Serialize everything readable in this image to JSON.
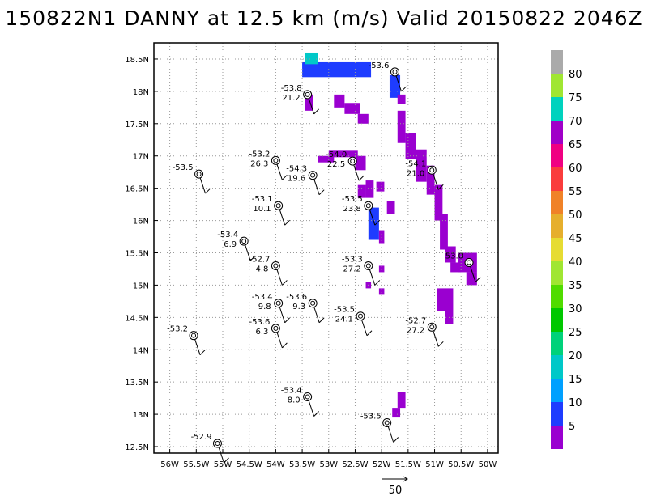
{
  "title": "150822N1 DANNY at 12.5 km (m/s) Valid 20150822 2046Z",
  "chart_data": {
    "type": "scatter",
    "title": "150822N1 DANNY at 12.5 km (m/s) Valid 20150822 2046Z",
    "xlabel": "",
    "ylabel": "",
    "xlim": [
      -56.3,
      -49.8
    ],
    "ylim": [
      12.4,
      18.75
    ],
    "grid": true,
    "x_ticks": [
      "56W",
      "55.5W",
      "55W",
      "54.5W",
      "54W",
      "53.5W",
      "53W",
      "52.5W",
      "52W",
      "51.5W",
      "51W",
      "50.5W",
      "50W"
    ],
    "y_ticks": [
      "12.5N",
      "13N",
      "13.5N",
      "14N",
      "14.5N",
      "15N",
      "15.5N",
      "16N",
      "16.5N",
      "17N",
      "17.5N",
      "18N",
      "18.5N"
    ],
    "colorbar": {
      "labels": [
        "5",
        "10",
        "15",
        "20",
        "25",
        "30",
        "35",
        "40",
        "45",
        "50",
        "55",
        "60",
        "65",
        "70",
        "75",
        "80"
      ],
      "colors": [
        "#9a00d0",
        "#1e3cff",
        "#00a0ff",
        "#00c8c8",
        "#00d27a",
        "#00c800",
        "#50dc00",
        "#a0e632",
        "#e6dc32",
        "#e6af2d",
        "#f08228",
        "#fa3c3c",
        "#f00082",
        "#a000c8",
        "#00d2be",
        "#a0e632",
        "#aaaaaa"
      ]
    },
    "reference_vector": {
      "label": "50"
    },
    "stations": [
      {
        "lon": -55.1,
        "lat": 12.55,
        "label1": "-52.9",
        "label2": ""
      },
      {
        "lon": -51.9,
        "lat": 12.87,
        "label1": "-53.5",
        "label2": ""
      },
      {
        "lon": -53.4,
        "lat": 13.27,
        "label1": "-53.4",
        "label2": "8.0"
      },
      {
        "lon": -55.55,
        "lat": 14.22,
        "label1": "-53.2",
        "label2": ""
      },
      {
        "lon": -54.0,
        "lat": 14.33,
        "label1": "-53.6",
        "label2": "6.3"
      },
      {
        "lon": -53.95,
        "lat": 14.72,
        "label1": "-53.4",
        "label2": "9.8"
      },
      {
        "lon": -53.3,
        "lat": 14.72,
        "label1": "-53.6",
        "label2": "9.3"
      },
      {
        "lon": -52.4,
        "lat": 14.52,
        "label1": "-53.5",
        "label2": "24.1"
      },
      {
        "lon": -51.05,
        "lat": 14.35,
        "label1": "-52.7",
        "label2": "27.2"
      },
      {
        "lon": -54.0,
        "lat": 15.3,
        "label1": "-52.7",
        "label2": "4.8"
      },
      {
        "lon": -52.25,
        "lat": 15.3,
        "label1": "-53.3",
        "label2": "27.2"
      },
      {
        "lon": -50.35,
        "lat": 15.35,
        "label1": "-53.0",
        "label2": ""
      },
      {
        "lon": -54.6,
        "lat": 15.68,
        "label1": "-53.4",
        "label2": "6.9"
      },
      {
        "lon": -53.95,
        "lat": 16.23,
        "label1": "-53.1",
        "label2": "10.1"
      },
      {
        "lon": -52.25,
        "lat": 16.23,
        "label1": "-53.5",
        "label2": "23.8"
      },
      {
        "lon": -55.45,
        "lat": 16.72,
        "label1": "-53.5",
        "label2": ""
      },
      {
        "lon": -53.3,
        "lat": 16.7,
        "label1": "-54.3",
        "label2": "19.6"
      },
      {
        "lon": -51.05,
        "lat": 16.78,
        "label1": "-54.1",
        "label2": "21.0"
      },
      {
        "lon": -54.0,
        "lat": 16.93,
        "label1": "-53.2",
        "label2": "26.3"
      },
      {
        "lon": -52.55,
        "lat": 16.92,
        "label1": "-54.0",
        "label2": "22.5"
      },
      {
        "lon": -53.4,
        "lat": 17.95,
        "label1": "-53.8",
        "label2": "21.2"
      },
      {
        "lon": -51.75,
        "lat": 18.3,
        "label1": "-53.6",
        "label2": ""
      }
    ]
  }
}
